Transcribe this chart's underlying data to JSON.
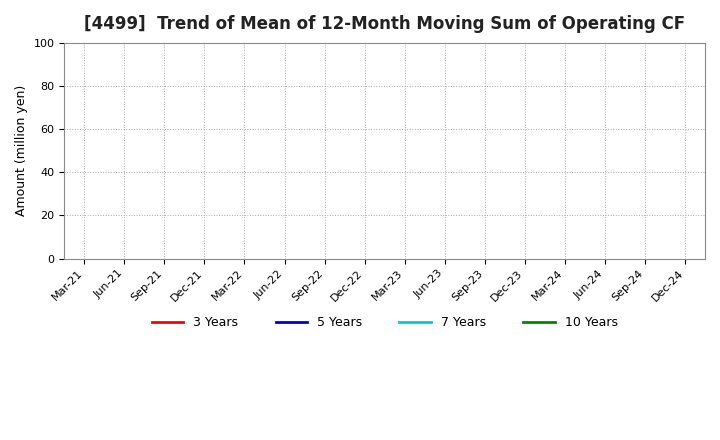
{
  "title": "[4499]  Trend of Mean of 12-Month Moving Sum of Operating CF",
  "ylabel": "Amount (million yen)",
  "ylim": [
    0,
    100
  ],
  "yticks": [
    0,
    20,
    40,
    60,
    80,
    100
  ],
  "background_color": "#ffffff",
  "grid_color": "#aaaaaa",
  "title_fontsize": 12,
  "axis_fontsize": 9,
  "tick_fontsize": 8,
  "legend_entries": [
    {
      "label": "3 Years",
      "color": "#ff0000"
    },
    {
      "label": "5 Years",
      "color": "#0000cc"
    },
    {
      "label": "7 Years",
      "color": "#00cccc"
    },
    {
      "label": "10 Years",
      "color": "#008800"
    }
  ],
  "x_tick_labels": [
    "Mar-21",
    "Jun-21",
    "Sep-21",
    "Dec-21",
    "Mar-22",
    "Jun-22",
    "Sep-22",
    "Dec-22",
    "Mar-23",
    "Jun-23",
    "Sep-23",
    "Dec-23",
    "Mar-24",
    "Jun-24",
    "Sep-24",
    "Dec-24"
  ]
}
